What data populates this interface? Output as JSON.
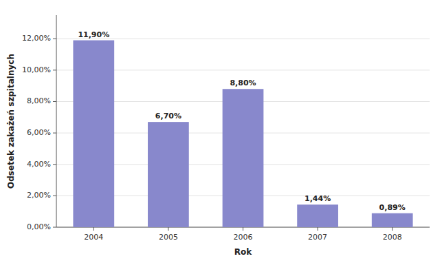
{
  "chart_data": {
    "type": "bar",
    "categories": [
      "2004",
      "2005",
      "2006",
      "2007",
      "2008"
    ],
    "values": [
      11.9,
      6.7,
      8.8,
      1.44,
      0.89
    ],
    "value_labels": [
      "11,90%",
      "6,70%",
      "8,80%",
      "1,44%",
      "0,89%"
    ],
    "data_labels": true,
    "color": "#8888CC",
    "xlabel": "Rok",
    "ylabel": "Odsetek zakażeń szpitalnych",
    "ylim": [
      0,
      13.5
    ],
    "yticks": [
      {
        "value": 0,
        "label": "0,00%"
      },
      {
        "value": 2,
        "label": "2,00%"
      },
      {
        "value": 4,
        "label": "4,00%"
      },
      {
        "value": 6,
        "label": "6,00%"
      },
      {
        "value": 8,
        "label": "8,00%"
      },
      {
        "value": 10,
        "label": "10,00%"
      },
      {
        "value": 12,
        "label": "12,00%"
      }
    ],
    "grid": true
  }
}
